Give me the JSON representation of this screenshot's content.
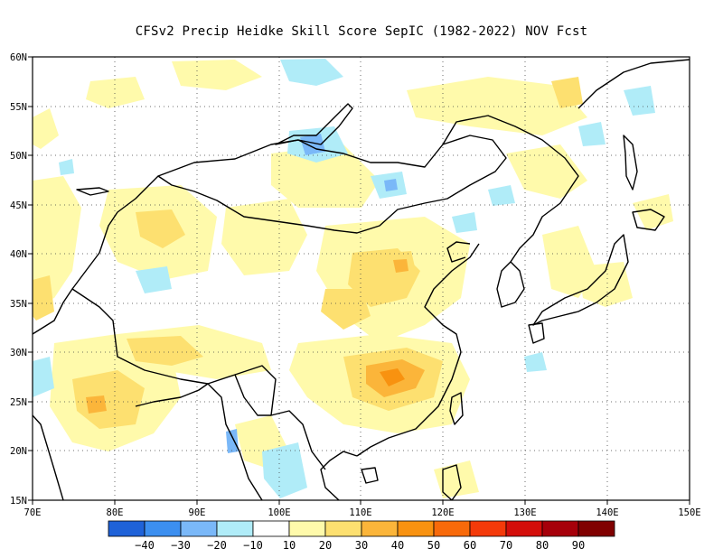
{
  "title": "CFSv2 Precip Heidke Skill Score SepIC (1982-2022) NOV Fcst",
  "map": {
    "lon_range": [
      70,
      150
    ],
    "lat_range": [
      15,
      60
    ],
    "x_ticks": [
      "70E",
      "80E",
      "90E",
      "100E",
      "110E",
      "120E",
      "130E",
      "140E",
      "150E"
    ],
    "y_ticks": [
      "15N",
      "20N",
      "25N",
      "30N",
      "35N",
      "40N",
      "45N",
      "50N",
      "55N",
      "60N"
    ],
    "gridlines": "dotted",
    "regions": [
      {
        "name": "positive-skill-weak",
        "level": "10-20"
      },
      {
        "name": "positive-skill-moderate",
        "level": "20-30"
      },
      {
        "name": "positive-skill-strong",
        "level": "30-40"
      },
      {
        "name": "negative-skill",
        "level": "-20--10"
      }
    ]
  },
  "colorbar": {
    "colors": [
      "#1f62d8",
      "#3c8ff0",
      "#7ab8f8",
      "#b0ecf8",
      "#ffffff",
      "#fffaab",
      "#fde070",
      "#fbb53a",
      "#f89210",
      "#f86a0a",
      "#f43a0a",
      "#d40e0a",
      "#a6000a",
      "#800000"
    ],
    "labels": [
      "-40",
      "-30",
      "-20",
      "-10",
      "10",
      "20",
      "30",
      "40",
      "50",
      "60",
      "70",
      "80",
      "90"
    ]
  }
}
